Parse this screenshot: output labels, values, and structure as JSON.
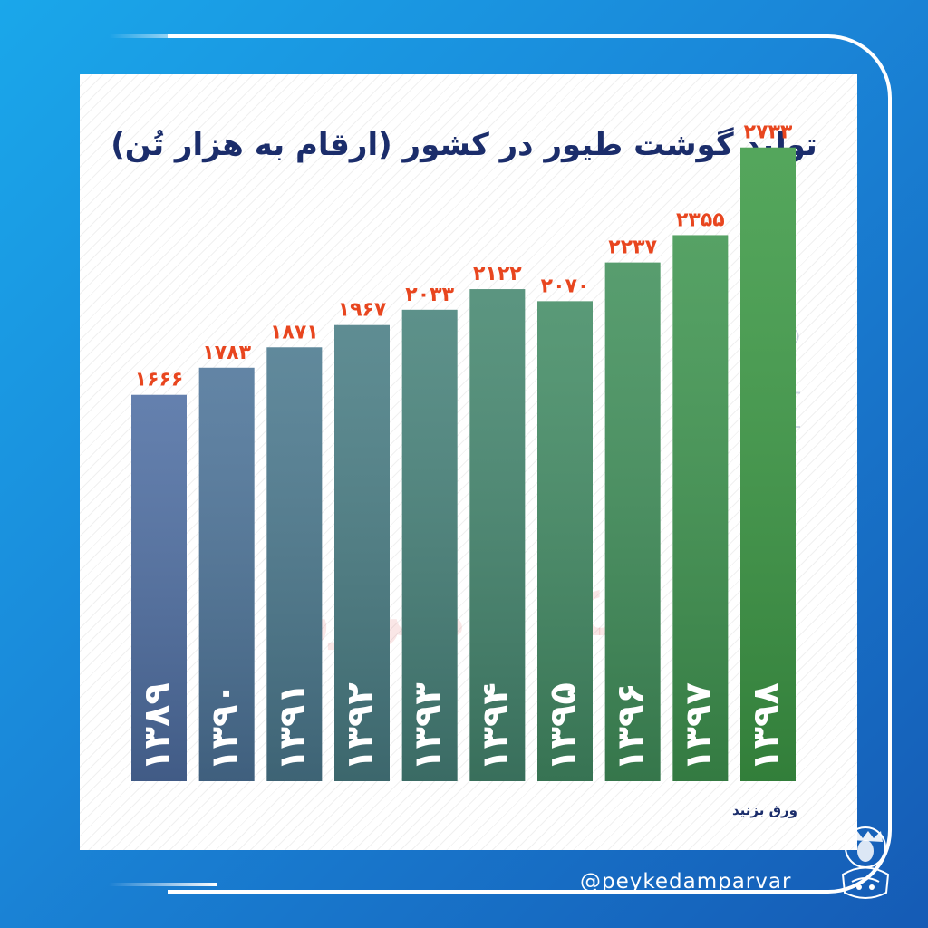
{
  "title": "تولید گوشت طیور در کشور (ارقام به هزار تُن)",
  "source_label": "ورق بزنید",
  "handle": "@peykedamparvar",
  "watermark_vertical": "@peykedamparvar",
  "watermark_text": "پیک دامپرور",
  "colors": {
    "value_label": "#e8461f",
    "title": "#1b2d6b",
    "bar_start": "#4f6fa3",
    "bar_end": "#3d9a46"
  },
  "chart_data": {
    "type": "bar",
    "title": "تولید گوشت طیور در کشور (ارقام به هزار تُن)",
    "categories": [
      "۱۳۸۹",
      "۱۳۹۰",
      "۱۳۹۱",
      "۱۳۹۲",
      "۱۳۹۳",
      "۱۳۹۴",
      "۱۳۹۵",
      "۱۳۹۶",
      "۱۳۹۷",
      "۱۳۹۸"
    ],
    "values": [
      1666,
      1783,
      1871,
      1967,
      2033,
      2122,
      2070,
      2237,
      2355,
      2733
    ],
    "value_labels": [
      "۱۶۶۶",
      "۱۷۸۳",
      "۱۸۷۱",
      "۱۹۶۷",
      "۲۰۳۳",
      "۲۱۲۲",
      "۲۰۷۰",
      "۲۲۳۷",
      "۲۳۵۵",
      "۲۷۳۳"
    ],
    "ylim": [
      0,
      2900
    ],
    "grid": false,
    "legend": "none"
  }
}
